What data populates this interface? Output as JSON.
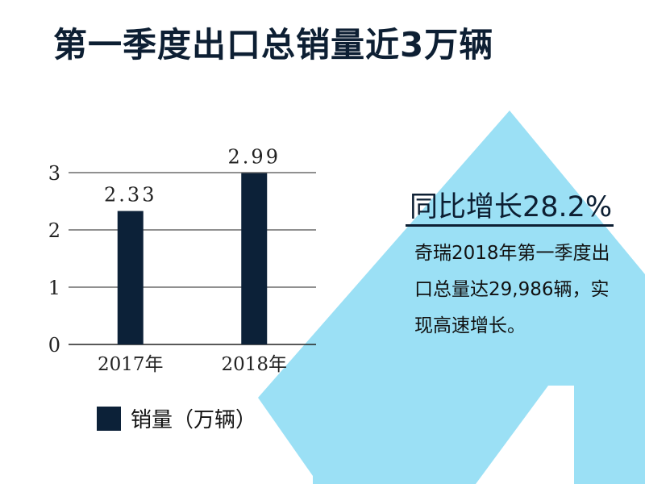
{
  "header": {
    "title": "第一季度出口总销量近3万辆"
  },
  "highlight": {
    "headline": "同比增长28.2%",
    "body": "奇瑞2018年第一季度出口总量达29,986辆，实现高速增长。"
  },
  "colors": {
    "bar": "#0c2138",
    "arrow": "#9be0f5",
    "text": "#0d1f33"
  },
  "chart_data": {
    "type": "bar",
    "categories": [
      "2017年",
      "2018年"
    ],
    "series": [
      {
        "name": "销量（万辆）",
        "values": [
          2.33,
          2.99
        ]
      }
    ],
    "data_labels": [
      "2.33",
      "2.99"
    ],
    "yticks": [
      "0",
      "1",
      "2",
      "3"
    ],
    "ylim": [
      0,
      3
    ],
    "grid": true,
    "legend": "bottom-left"
  }
}
